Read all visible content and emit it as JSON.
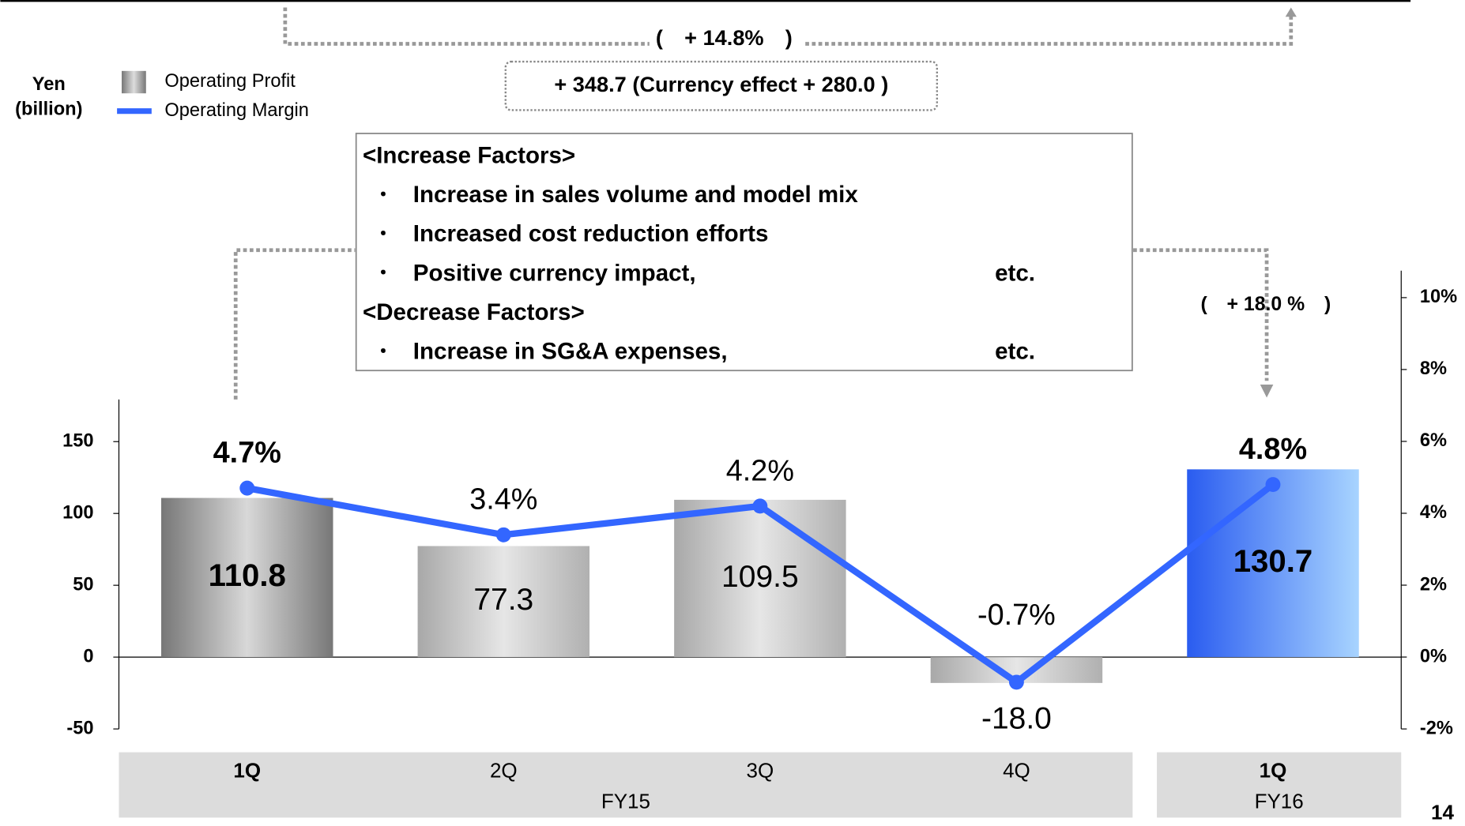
{
  "chart_data": {
    "type": "bar-line",
    "units": [
      "Yen",
      "(billion)"
    ],
    "categories": [
      "1Q",
      "2Q",
      "3Q",
      "4Q",
      "1Q"
    ],
    "groups": [
      {
        "name": "FY15",
        "size": 4
      },
      {
        "name": "FY16",
        "size": 1
      }
    ],
    "series": [
      {
        "name": "Operating Profit",
        "type": "bar",
        "color": "#b4b4b4",
        "values": [
          110.8,
          77.3,
          109.5,
          -18.0,
          130.7
        ],
        "value_labels": [
          "110.8",
          "77.3",
          "109.5",
          "-18.0",
          "130.7"
        ]
      },
      {
        "name": "Operating Margin",
        "type": "line",
        "axis": "y2",
        "color": "#3366ff",
        "values": [
          4.7,
          3.4,
          4.2,
          -0.7,
          4.8
        ],
        "value_labels": [
          "4.7%",
          "3.4%",
          "4.2%",
          "-0.7%",
          "4.8%"
        ]
      }
    ],
    "ylim": [
      -50,
      269
    ],
    "yticks": [
      -50,
      0,
      50,
      100,
      150
    ],
    "y2lim": [
      -2,
      10.75
    ],
    "y2ticks": [
      {
        "value": -2,
        "label": "-2%"
      },
      {
        "value": 0,
        "label": "0%"
      },
      {
        "value": 2,
        "label": "2%"
      },
      {
        "value": 4,
        "label": "4%"
      },
      {
        "value": 6,
        "label": "6%"
      },
      {
        "value": 8,
        "label": "8%"
      },
      {
        "value": 10,
        "label": "10%"
      }
    ],
    "annotations": {
      "margin_change": "(　+ 14.8%　)",
      "profit_change": "+ 348.7 (Currency effect + 280.0 )",
      "growth": "(　+ 18.0 %　)"
    },
    "factors": {
      "increase_heading": "<Increase Factors>",
      "increase": [
        {
          "text": "Increase in sales volume and model mix"
        },
        {
          "text": "Increased cost reduction efforts"
        },
        {
          "text": "Positive currency impact,",
          "suffix": "etc."
        }
      ],
      "decrease_heading": "<Decrease Factors>",
      "decrease": [
        {
          "text": "Increase in SG&A expenses,",
          "suffix": "etc."
        }
      ],
      "bullet": "・"
    },
    "page_number": "14"
  }
}
